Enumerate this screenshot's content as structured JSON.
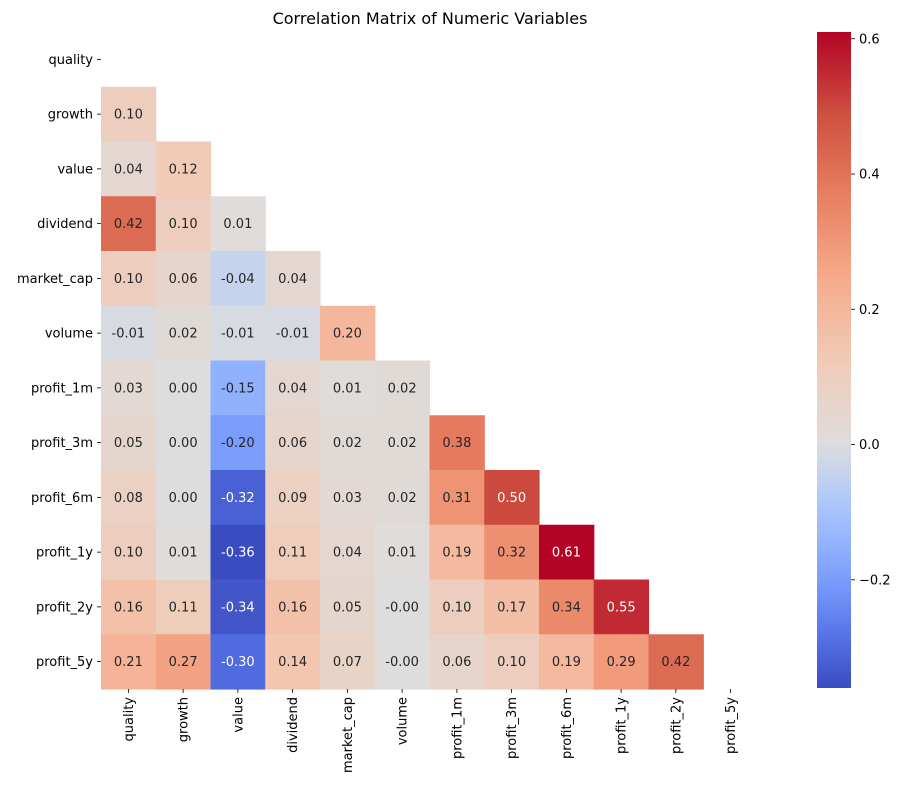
{
  "chart_data": {
    "type": "heatmap",
    "title": "Correlation Matrix of Numeric Variables",
    "variables": [
      "quality",
      "growth",
      "value",
      "dividend",
      "market_cap",
      "volume",
      "profit_1m",
      "profit_3m",
      "profit_6m",
      "profit_1y",
      "profit_2y",
      "profit_5y"
    ],
    "mask": "upper-triangle-including-diagonal",
    "values": [
      [
        null,
        null,
        null,
        null,
        null,
        null,
        null,
        null,
        null,
        null,
        null,
        null
      ],
      [
        0.1,
        null,
        null,
        null,
        null,
        null,
        null,
        null,
        null,
        null,
        null,
        null
      ],
      [
        0.04,
        0.12,
        null,
        null,
        null,
        null,
        null,
        null,
        null,
        null,
        null,
        null
      ],
      [
        0.42,
        0.1,
        0.01,
        null,
        null,
        null,
        null,
        null,
        null,
        null,
        null,
        null
      ],
      [
        0.1,
        0.06,
        -0.04,
        0.04,
        null,
        null,
        null,
        null,
        null,
        null,
        null,
        null
      ],
      [
        -0.01,
        0.02,
        -0.01,
        -0.01,
        0.2,
        null,
        null,
        null,
        null,
        null,
        null,
        null
      ],
      [
        0.03,
        0.0,
        -0.15,
        0.04,
        0.01,
        0.02,
        null,
        null,
        null,
        null,
        null,
        null
      ],
      [
        0.05,
        0.0,
        -0.2,
        0.06,
        0.02,
        0.02,
        0.38,
        null,
        null,
        null,
        null,
        null
      ],
      [
        0.08,
        0.0,
        -0.32,
        0.09,
        0.03,
        0.02,
        0.31,
        0.5,
        null,
        null,
        null,
        null
      ],
      [
        0.1,
        0.01,
        -0.36,
        0.11,
        0.04,
        0.01,
        0.19,
        0.32,
        0.61,
        null,
        null,
        null
      ],
      [
        0.16,
        0.11,
        -0.34,
        0.16,
        0.05,
        -0.0,
        0.1,
        0.17,
        0.34,
        0.55,
        null,
        null
      ],
      [
        0.21,
        0.27,
        -0.3,
        0.14,
        0.07,
        -0.0,
        0.06,
        0.1,
        0.19,
        0.29,
        0.42,
        null
      ]
    ],
    "colormap": "coolwarm",
    "center": 0,
    "colorbar": {
      "range": [
        -0.36,
        0.61
      ],
      "ticks": [
        -0.2,
        0.0,
        0.2,
        0.4,
        0.6
      ],
      "tick_labels": [
        "−0.2",
        "0.0",
        "0.2",
        "0.4",
        "0.6"
      ]
    }
  }
}
